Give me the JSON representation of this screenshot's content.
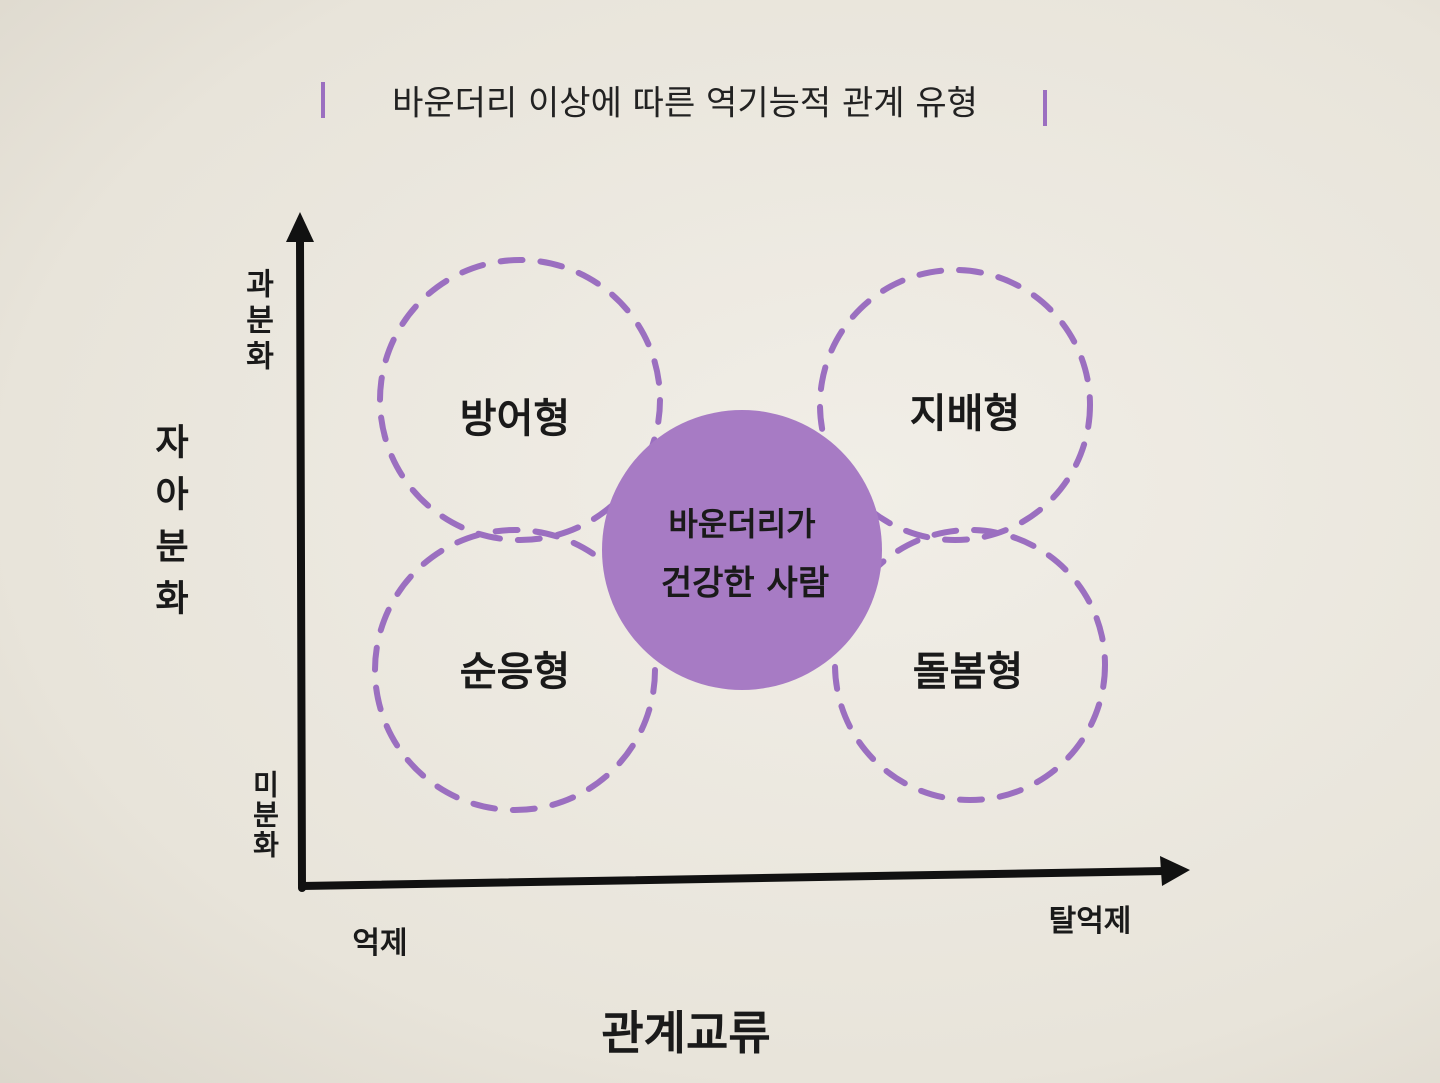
{
  "title": "바운더리 이상에 따른 역기능적 관계 유형",
  "y_axis": {
    "label": "자아분화",
    "top": "과분화",
    "bottom": "미분화"
  },
  "x_axis": {
    "label": "관계교류",
    "left": "억제",
    "right": "탈억제"
  },
  "center": {
    "lines": [
      "바운더리가",
      "건강한 사람"
    ]
  },
  "nodes": [
    {
      "label": "방어형"
    },
    {
      "label": "지배형"
    },
    {
      "label": "순응형"
    },
    {
      "label": "돌봄형"
    }
  ]
}
